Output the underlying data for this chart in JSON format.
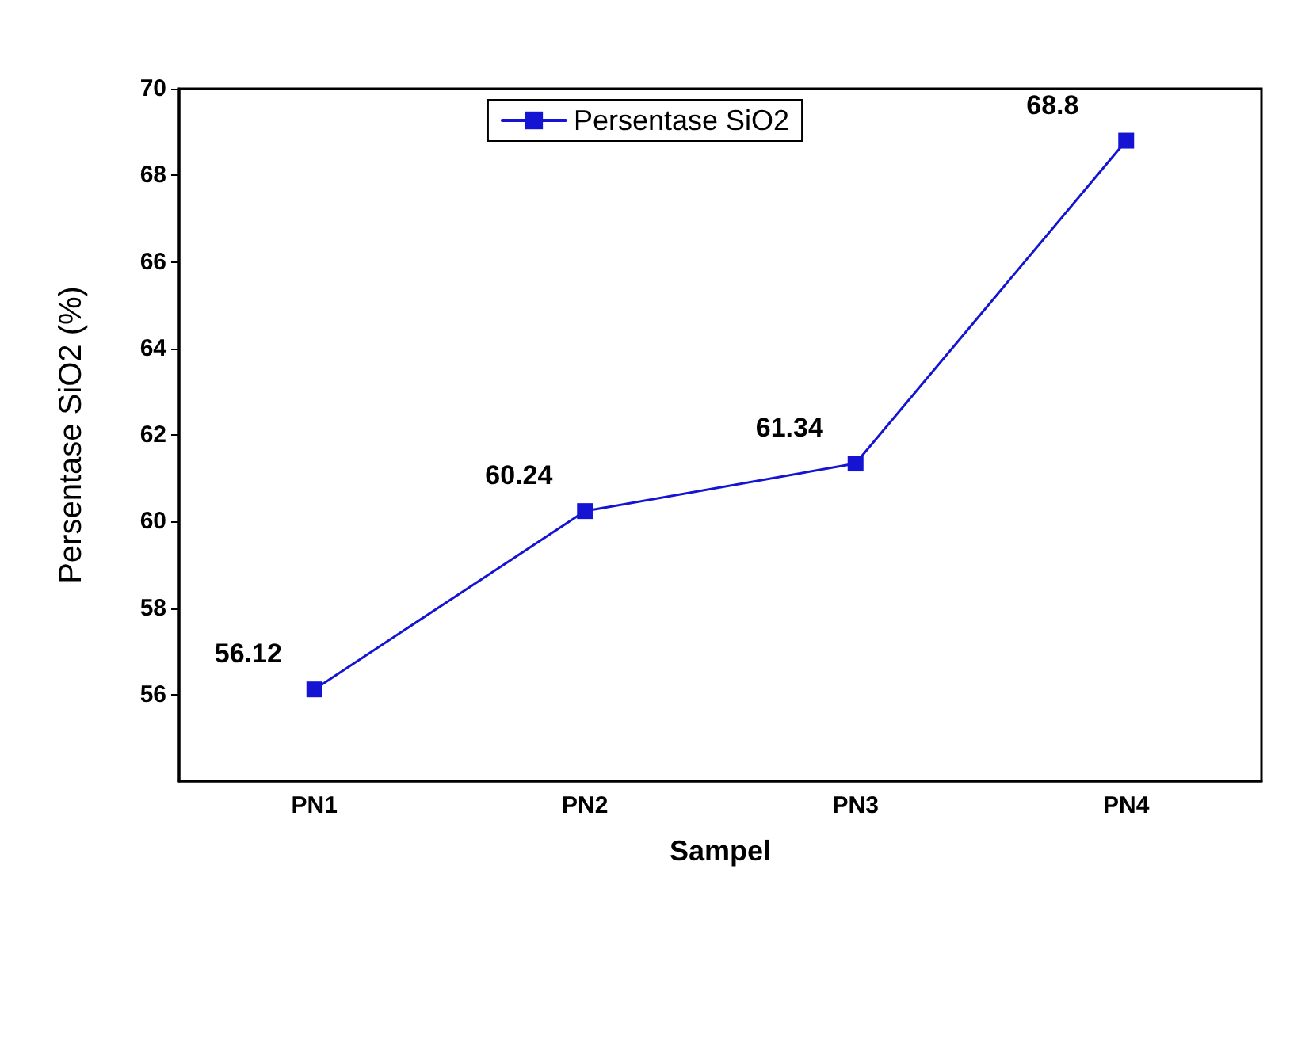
{
  "chart_data": {
    "type": "line",
    "xlabel": "Sampel",
    "ylabel": "Persentase SiO2 (%)",
    "categories": [
      "PN1",
      "PN2",
      "PN3",
      "PN4"
    ],
    "series": [
      {
        "name": "Persentase SiO2",
        "color": "#1414d2",
        "values": [
          56.12,
          60.24,
          61.34,
          68.8
        ]
      }
    ],
    "ylim": [
      54,
      70
    ],
    "yticks": [
      56,
      58,
      60,
      62,
      64,
      66,
      68,
      70
    ],
    "data_labels": true,
    "marker": "square",
    "line_style": "solid",
    "legend": "top",
    "grid": false
  }
}
